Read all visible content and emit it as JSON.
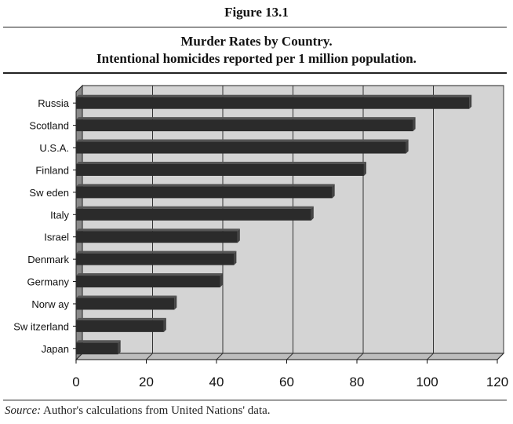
{
  "figure_label": "Figure 13.1",
  "title_line1": "Murder Rates by Country.",
  "title_line2": "Intentional homicides reported per 1 million population.",
  "source_prefix": "Source:",
  "source_text": " Author's calculations from United Nations' data.",
  "colors": {
    "plot_background": "#d4d4d4",
    "bar": "#2b2b2b",
    "gridline": "#333333",
    "wall": "#8a8a8a"
  },
  "chart_data": {
    "type": "bar",
    "orientation": "horizontal",
    "title": "Murder Rates by Country. Intentional homicides reported per 1 million population.",
    "categories": [
      "Russia",
      "Scotland",
      "U.S.A.",
      "Finland",
      "Sw eden",
      "Italy",
      "Israel",
      "Denmark",
      "Germany",
      "Norw ay",
      "Sw itzerland",
      "Japan"
    ],
    "values": [
      112,
      96,
      94,
      82,
      73,
      67,
      46,
      45,
      41,
      28,
      25,
      12
    ],
    "xlim": [
      0,
      120
    ],
    "xticks": [
      0,
      20,
      40,
      60,
      80,
      100,
      120
    ],
    "xlabel": "",
    "ylabel": "",
    "grid": "vertical"
  }
}
